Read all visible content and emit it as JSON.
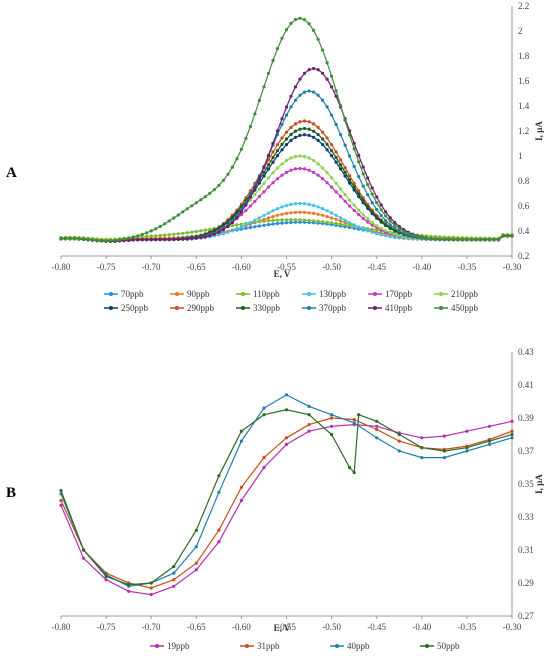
{
  "chart_data": [
    {
      "type": "line",
      "panel_label": "A",
      "xlabel": "E, V",
      "ylabel": "I, µA",
      "xlim": [
        -0.8,
        -0.3
      ],
      "ylim": [
        0.2,
        2.2
      ],
      "x_ticks": [
        "-0.80",
        "-0.75",
        "-0.70",
        "-0.65",
        "-0.60",
        "-0.55",
        "-0.50",
        "-0.45",
        "-0.40",
        "-0.35",
        "-0.30"
      ],
      "y_ticks": [
        "0.2",
        "0.4",
        "0.6",
        "0.8",
        "1",
        "1.2",
        "1.4",
        "1.6",
        "1.8",
        "2",
        "2.2"
      ],
      "y_axis_side": "right",
      "grid": false,
      "legend_position": "bottom",
      "series": [
        {
          "name": "70ppb",
          "color": "#1f8fe0",
          "peak_x": -0.535,
          "peak_y": 0.47,
          "base_y": 0.33,
          "width": 0.065
        },
        {
          "name": "90ppb",
          "color": "#e8772e",
          "peak_x": -0.535,
          "peak_y": 0.55,
          "base_y": 0.34,
          "width": 0.05
        },
        {
          "name": "110ppb",
          "color": "#7dbb2c",
          "peak_x": -0.545,
          "peak_y": 0.49,
          "base_y": 0.34,
          "width": 0.075
        },
        {
          "name": "130ppb",
          "color": "#43c1ec",
          "peak_x": -0.535,
          "peak_y": 0.62,
          "base_y": 0.33,
          "width": 0.045
        },
        {
          "name": "170ppb",
          "color": "#c03bbd",
          "peak_x": -0.535,
          "peak_y": 0.9,
          "base_y": 0.33,
          "width": 0.045
        },
        {
          "name": "210ppb",
          "color": "#8fd14f",
          "peak_x": -0.535,
          "peak_y": 1.0,
          "base_y": 0.33,
          "width": 0.045
        },
        {
          "name": "250ppb",
          "color": "#0b3d6b",
          "peak_x": -0.53,
          "peak_y": 1.17,
          "base_y": 0.33,
          "width": 0.045
        },
        {
          "name": "290ppb",
          "color": "#c4501b",
          "peak_x": -0.53,
          "peak_y": 1.28,
          "base_y": 0.33,
          "width": 0.045
        },
        {
          "name": "330ppb",
          "color": "#1e5a23",
          "peak_x": -0.53,
          "peak_y": 1.22,
          "base_y": 0.33,
          "width": 0.045
        },
        {
          "name": "370ppb",
          "color": "#1f7fa8",
          "peak_x": -0.525,
          "peak_y": 1.52,
          "base_y": 0.33,
          "width": 0.042
        },
        {
          "name": "410ppb",
          "color": "#6e1f6b",
          "peak_x": -0.52,
          "peak_y": 1.7,
          "base_y": 0.33,
          "width": 0.042
        },
        {
          "name": "450ppb",
          "color": "#3f8c3a",
          "peak_x": -0.535,
          "peak_y": 2.1,
          "base_y": 0.33,
          "width": 0.045,
          "shoulder_x": -0.645,
          "shoulder_y": 0.56
        }
      ]
    },
    {
      "type": "line",
      "panel_label": "B",
      "xlabel": "E, V",
      "ylabel": "I, µA",
      "xlim": [
        -0.8,
        -0.3
      ],
      "ylim": [
        0.27,
        0.43
      ],
      "x_ticks": [
        "-0.80",
        "-0.75",
        "-0.70",
        "-0.65",
        "-0.60",
        "-0.55",
        "-0.50",
        "-0.45",
        "-0.40",
        "-0.35",
        "-0.30"
      ],
      "y_ticks": [
        "0.27",
        "0.29",
        "0.31",
        "0.33",
        "0.35",
        "0.37",
        "0.39",
        "0.41",
        "0.43"
      ],
      "y_axis_side": "right",
      "grid": false,
      "legend_position": "bottom",
      "series": [
        {
          "name": "19ppb",
          "color": "#b52fb0",
          "x": [
            -0.8,
            -0.775,
            -0.75,
            -0.725,
            -0.7,
            -0.675,
            -0.65,
            -0.625,
            -0.6,
            -0.575,
            -0.55,
            -0.525,
            -0.5,
            -0.475,
            -0.45,
            -0.425,
            -0.4,
            -0.375,
            -0.35,
            -0.325,
            -0.3
          ],
          "y": [
            0.337,
            0.305,
            0.292,
            0.285,
            0.283,
            0.288,
            0.298,
            0.315,
            0.34,
            0.36,
            0.374,
            0.382,
            0.385,
            0.386,
            0.385,
            0.381,
            0.378,
            0.379,
            0.382,
            0.385,
            0.388
          ]
        },
        {
          "name": "31ppb",
          "color": "#c4501b",
          "x": [
            -0.8,
            -0.775,
            -0.75,
            -0.725,
            -0.7,
            -0.675,
            -0.65,
            -0.625,
            -0.6,
            -0.575,
            -0.55,
            -0.525,
            -0.5,
            -0.475,
            -0.45,
            -0.425,
            -0.4,
            -0.375,
            -0.35,
            -0.325,
            -0.3
          ],
          "y": [
            0.34,
            0.31,
            0.296,
            0.29,
            0.287,
            0.292,
            0.302,
            0.322,
            0.348,
            0.366,
            0.378,
            0.386,
            0.39,
            0.389,
            0.383,
            0.376,
            0.372,
            0.371,
            0.373,
            0.377,
            0.382
          ]
        },
        {
          "name": "40ppb",
          "color": "#1f7fa8",
          "x": [
            -0.8,
            -0.775,
            -0.75,
            -0.725,
            -0.7,
            -0.675,
            -0.65,
            -0.625,
            -0.6,
            -0.575,
            -0.55,
            -0.525,
            -0.5,
            -0.475,
            -0.45,
            -0.425,
            -0.4,
            -0.375,
            -0.35,
            -0.325,
            -0.3
          ],
          "y": [
            0.344,
            0.31,
            0.295,
            0.288,
            0.29,
            0.296,
            0.312,
            0.345,
            0.376,
            0.396,
            0.404,
            0.397,
            0.392,
            0.387,
            0.378,
            0.37,
            0.366,
            0.366,
            0.37,
            0.374,
            0.378
          ]
        },
        {
          "name": "50ppb",
          "color": "#2f6a26",
          "x": [
            -0.8,
            -0.775,
            -0.75,
            -0.725,
            -0.7,
            -0.675,
            -0.65,
            -0.625,
            -0.6,
            -0.575,
            -0.55,
            -0.525,
            -0.5,
            -0.48,
            -0.475,
            -0.47,
            -0.45,
            -0.425,
            -0.4,
            -0.375,
            -0.35,
            -0.325,
            -0.3
          ],
          "y": [
            0.346,
            0.31,
            0.294,
            0.289,
            0.29,
            0.3,
            0.322,
            0.355,
            0.382,
            0.392,
            0.395,
            0.392,
            0.38,
            0.36,
            0.357,
            0.392,
            0.388,
            0.38,
            0.372,
            0.37,
            0.372,
            0.376,
            0.38
          ]
        }
      ]
    }
  ]
}
